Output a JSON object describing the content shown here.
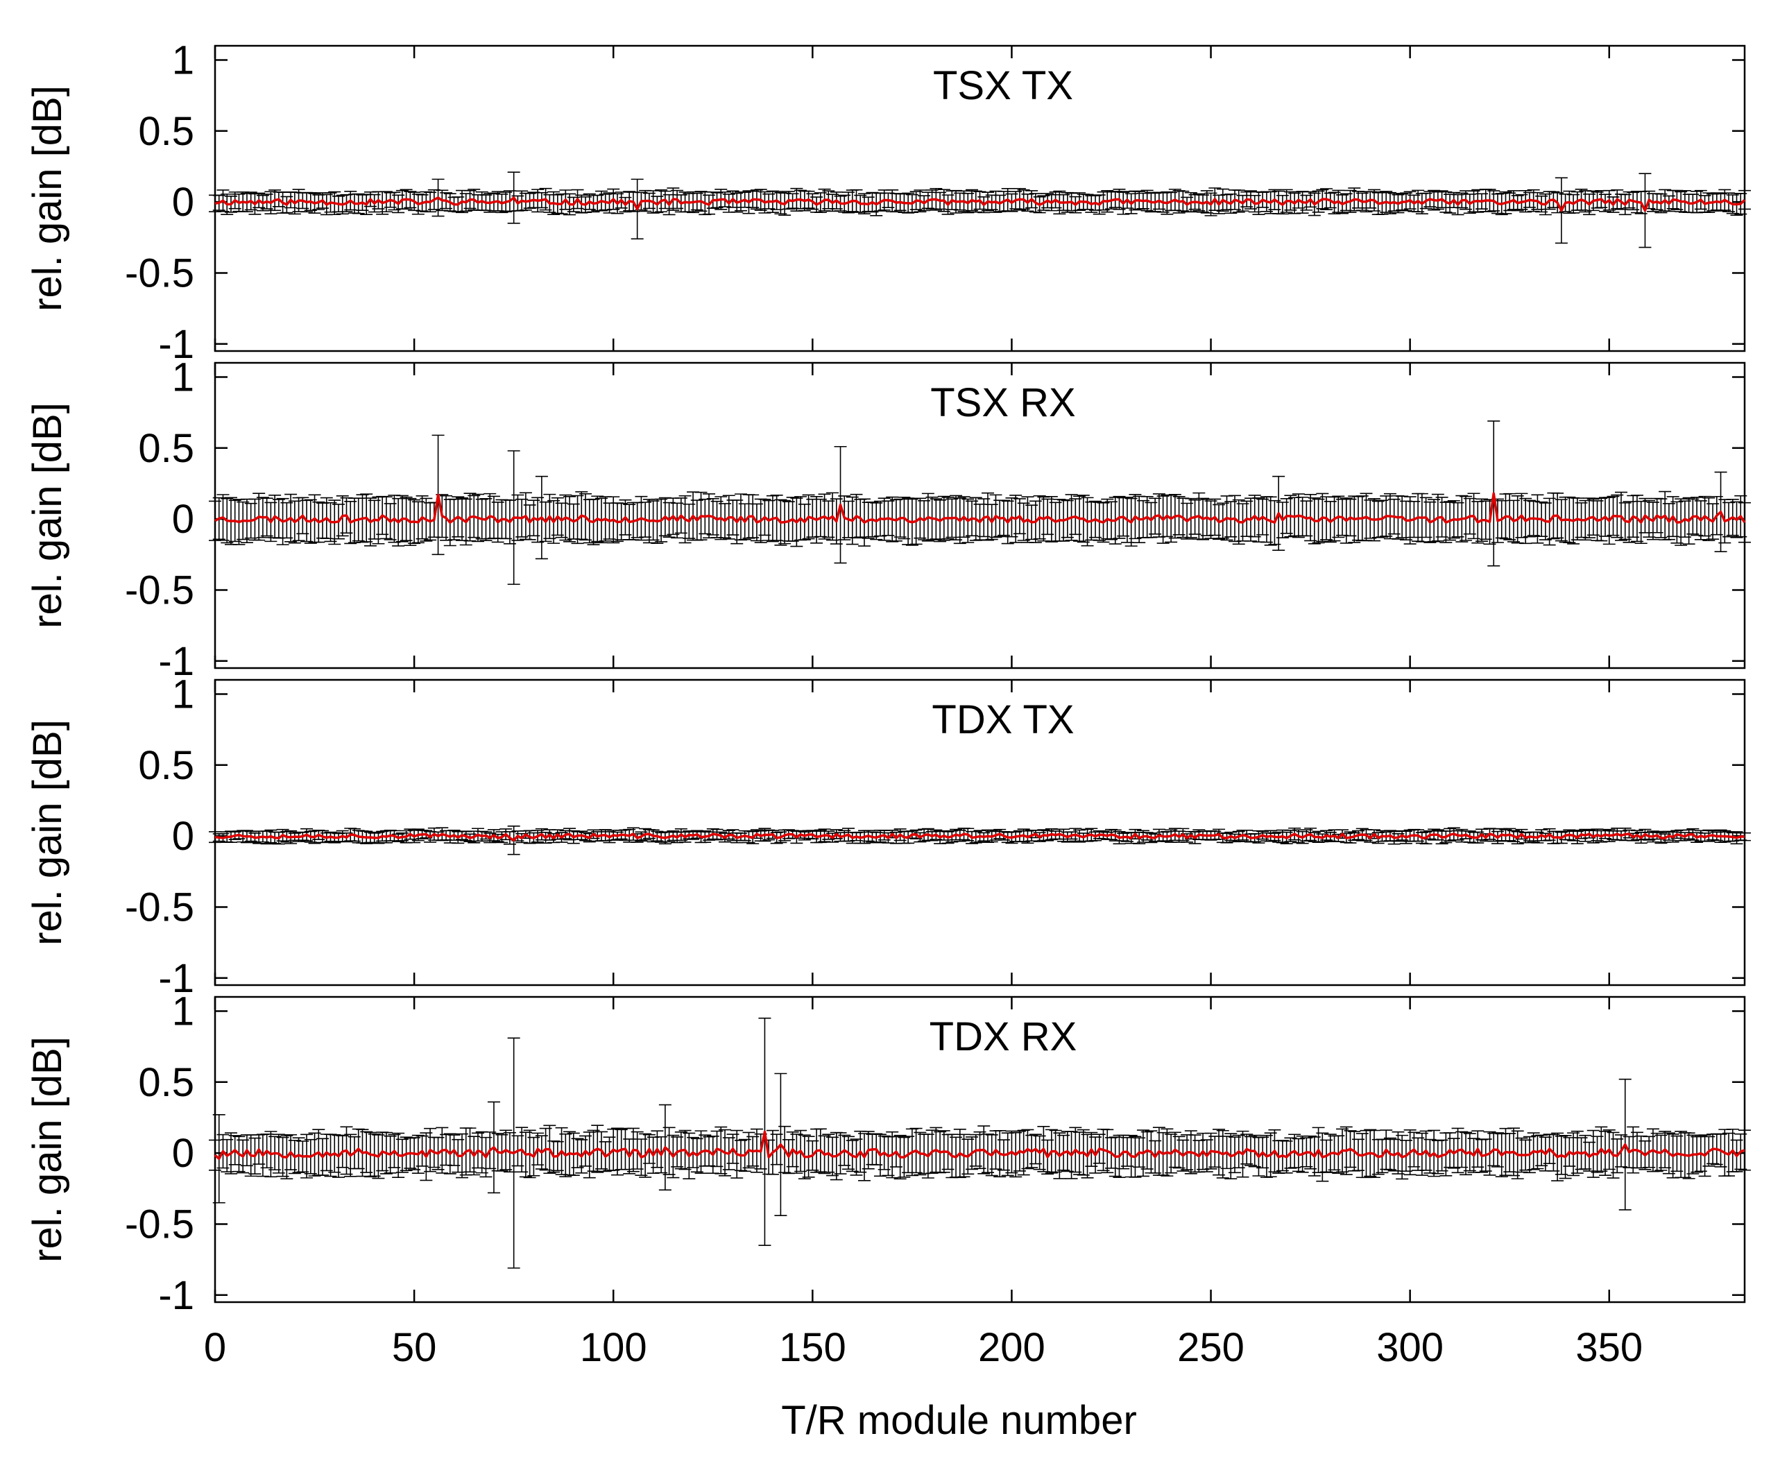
{
  "chart_data": {
    "type": "line",
    "xlabel": "T/R module number",
    "xlim": [
      0,
      384
    ],
    "x_ticks": [
      {
        "value": 0,
        "label": "0"
      },
      {
        "value": 50,
        "label": "50"
      },
      {
        "value": 100,
        "label": "100"
      },
      {
        "value": 150,
        "label": "150"
      },
      {
        "value": 200,
        "label": "200"
      },
      {
        "value": 250,
        "label": "250"
      },
      {
        "value": 300,
        "label": "300"
      },
      {
        "value": 350,
        "label": "350"
      }
    ],
    "colors": {
      "series_line": "#e00000",
      "error_bars": "#000000",
      "frame": "#000000"
    },
    "panels": [
      {
        "title": "TSX TX",
        "ylabel": "rel. gain [dB]",
        "ylim": [
          -1.05,
          1.1
        ],
        "y_ticks": [
          {
            "value": 1,
            "label": "1"
          },
          {
            "value": 0.5,
            "label": "0.5"
          },
          {
            "value": 0,
            "label": "0"
          },
          {
            "value": -0.5,
            "label": "-0.5"
          },
          {
            "value": -1,
            "label": "-1"
          }
        ],
        "noise": {
          "mean_amp": 0.02,
          "err_min": 0.05,
          "err_max": 0.08,
          "seed": 11
        },
        "outliers": [
          {
            "x": 56,
            "mean": 0.03,
            "err": 0.13
          },
          {
            "x": 75,
            "mean": 0.03,
            "err": 0.18
          },
          {
            "x": 106,
            "mean": -0.05,
            "err": 0.21
          },
          {
            "x": 338,
            "mean": -0.06,
            "err": 0.23
          },
          {
            "x": 359,
            "mean": -0.06,
            "err": 0.26
          }
        ]
      },
      {
        "title": "TSX RX",
        "ylabel": "rel. gain [dB]",
        "ylim": [
          -1.05,
          1.1
        ],
        "y_ticks": [
          {
            "value": 1,
            "label": "1"
          },
          {
            "value": 0.5,
            "label": "0.5"
          },
          {
            "value": 0,
            "label": "0"
          },
          {
            "value": -0.5,
            "label": "-0.5"
          },
          {
            "value": -1,
            "label": "-1"
          }
        ],
        "noise": {
          "mean_amp": 0.025,
          "err_min": 0.12,
          "err_max": 0.17,
          "seed": 23
        },
        "outliers": [
          {
            "x": 56,
            "mean": 0.17,
            "err": 0.42
          },
          {
            "x": 75,
            "mean": 0.01,
            "err": 0.47
          },
          {
            "x": 82,
            "mean": 0.01,
            "err": 0.29
          },
          {
            "x": 157,
            "mean": 0.1,
            "err": 0.41
          },
          {
            "x": 267,
            "mean": 0.04,
            "err": 0.26
          },
          {
            "x": 321,
            "mean": 0.18,
            "err": 0.51
          },
          {
            "x": 378,
            "mean": 0.05,
            "err": 0.28
          }
        ]
      },
      {
        "title": "TDX TX",
        "ylabel": "rel. gain [dB]",
        "ylim": [
          -1.05,
          1.1
        ],
        "y_ticks": [
          {
            "value": 1,
            "label": "1"
          },
          {
            "value": 0.5,
            "label": "0.5"
          },
          {
            "value": 0,
            "label": "0"
          },
          {
            "value": -0.5,
            "label": "-0.5"
          },
          {
            "value": -1,
            "label": "-1"
          }
        ],
        "noise": {
          "mean_amp": 0.015,
          "err_min": 0.025,
          "err_max": 0.045,
          "seed": 37
        },
        "outliers": [
          {
            "x": 75,
            "mean": -0.03,
            "err": 0.1
          }
        ]
      },
      {
        "title": "TDX RX",
        "ylabel": "rel. gain [dB]",
        "ylim": [
          -1.05,
          1.1
        ],
        "y_ticks": [
          {
            "value": 1,
            "label": "1"
          },
          {
            "value": 0.5,
            "label": "0.5"
          },
          {
            "value": 0,
            "label": "0"
          },
          {
            "value": -0.5,
            "label": "-0.5"
          },
          {
            "value": -1,
            "label": "-1"
          }
        ],
        "noise": {
          "mean_amp": 0.03,
          "err_min": 0.1,
          "err_max": 0.17,
          "seed": 53
        },
        "outliers": [
          {
            "x": 1,
            "mean": -0.04,
            "err": 0.31
          },
          {
            "x": 70,
            "mean": 0.04,
            "err": 0.32
          },
          {
            "x": 75,
            "mean": 0.0,
            "err": 0.81
          },
          {
            "x": 113,
            "mean": 0.04,
            "err": 0.3
          },
          {
            "x": 138,
            "mean": 0.15,
            "err": 0.8
          },
          {
            "x": 142,
            "mean": 0.06,
            "err": 0.5
          },
          {
            "x": 354,
            "mean": 0.06,
            "err": 0.46
          }
        ]
      }
    ]
  }
}
